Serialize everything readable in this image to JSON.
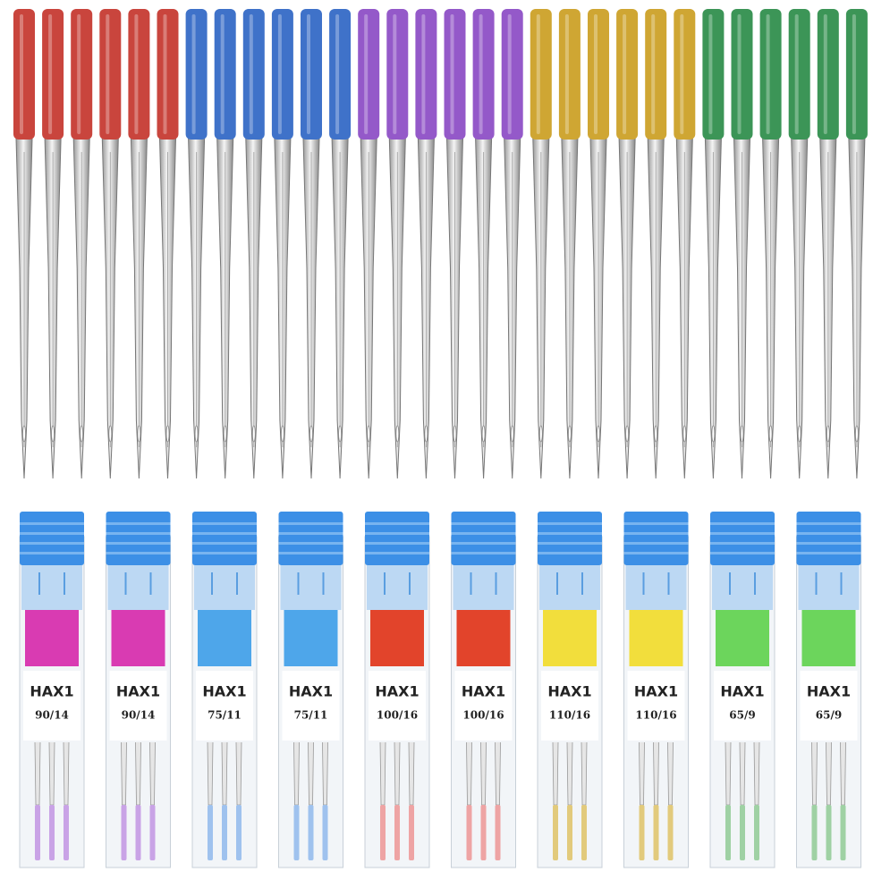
{
  "cases": [
    {
      "brand": "HAX1",
      "size": "90/14",
      "color": "#d93bb2",
      "tip": "#c9a3e6"
    },
    {
      "brand": "HAX1",
      "size": "90/14",
      "color": "#d93bb2",
      "tip": "#c9a3e6"
    },
    {
      "brand": "HAX1",
      "size": "75/11",
      "color": "#4ea6ea",
      "tip": "#9fc2ee"
    },
    {
      "brand": "HAX1",
      "size": "75/11",
      "color": "#4ea6ea",
      "tip": "#9fc2ee"
    },
    {
      "brand": "HAX1",
      "size": "100/16",
      "color": "#e2442b",
      "tip": "#eea4a4"
    },
    {
      "brand": "HAX1",
      "size": "100/16",
      "color": "#e2442b",
      "tip": "#eea4a4"
    },
    {
      "brand": "HAX1",
      "size": "110/16",
      "color": "#f2de3c",
      "tip": "#e2ca7c"
    },
    {
      "brand": "HAX1",
      "size": "110/16",
      "color": "#f2de3c",
      "tip": "#e2ca7c"
    },
    {
      "brand": "HAX1",
      "size": "65/9",
      "color": "#6cd55c",
      "tip": "#9fd1a4"
    },
    {
      "brand": "HAX1",
      "size": "65/9",
      "color": "#6cd55c",
      "tip": "#9fd1a4"
    }
  ]
}
